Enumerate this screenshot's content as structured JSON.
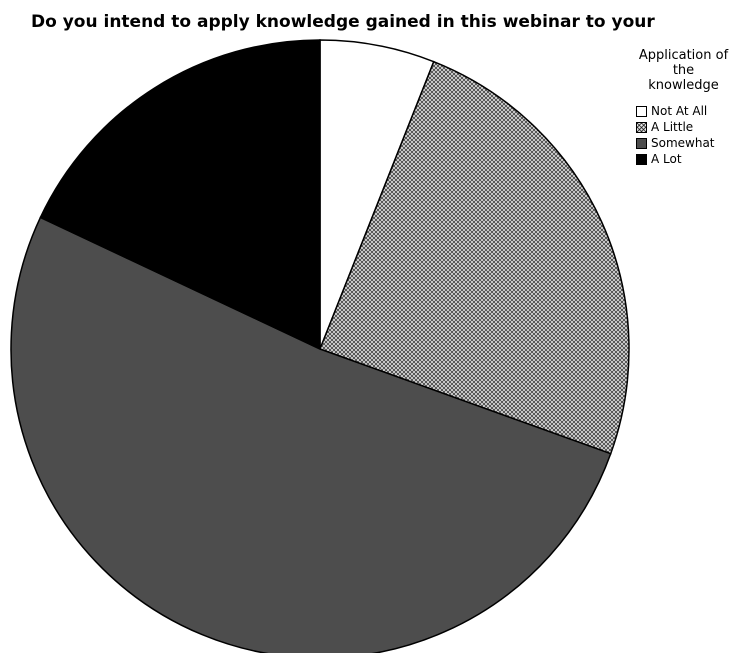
{
  "chart_data": {
    "type": "pie",
    "title": "Do you intend to apply knowledge gained in this webinar to your",
    "legend_title": "Application of the knowledge",
    "legend_position": "top-right",
    "categories": [
      "Not At All",
      "A Little",
      "Somewhat",
      "A Lot"
    ],
    "values": [
      6.0,
      24.5,
      51.5,
      18.0
    ],
    "colors": [
      "#ffffff",
      "#cfcfcf",
      "#4d4d4d",
      "#000000"
    ],
    "patterns": [
      "none",
      "crosshatch",
      "none",
      "none"
    ]
  }
}
